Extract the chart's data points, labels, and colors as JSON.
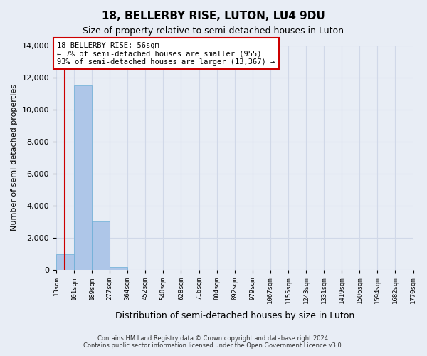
{
  "title": "18, BELLERBY RISE, LUTON, LU4 9DU",
  "subtitle": "Size of property relative to semi-detached houses in Luton",
  "xlabel": "Distribution of semi-detached houses by size in Luton",
  "ylabel": "Number of semi-detached properties",
  "footer_line1": "Contains HM Land Registry data © Crown copyright and database right 2024.",
  "footer_line2": "Contains public sector information licensed under the Open Government Licence v3.0.",
  "property_size": 56,
  "property_label": "18 BELLERBY RISE: 56sqm",
  "smaller_pct": 7,
  "smaller_count": 955,
  "larger_pct": 93,
  "larger_count": 13367,
  "bin_edges": [
    13,
    101,
    189,
    277,
    364,
    452,
    540,
    628,
    716,
    804,
    892,
    979,
    1067,
    1155,
    1243,
    1331,
    1419,
    1506,
    1594,
    1682,
    1770
  ],
  "bin_labels": [
    "13sqm",
    "101sqm",
    "189sqm",
    "277sqm",
    "364sqm",
    "452sqm",
    "540sqm",
    "628sqm",
    "716sqm",
    "804sqm",
    "892sqm",
    "979sqm",
    "1067sqm",
    "1155sqm",
    "1243sqm",
    "1331sqm",
    "1419sqm",
    "1506sqm",
    "1594sqm",
    "1682sqm",
    "1770sqm"
  ],
  "bar_values": [
    955,
    11500,
    3000,
    150,
    0,
    0,
    0,
    0,
    0,
    0,
    0,
    0,
    0,
    0,
    0,
    0,
    0,
    0,
    0,
    0
  ],
  "bar_color": "#aec6e8",
  "bar_edge_color": "#6aaed6",
  "annotation_box_color": "#ffffff",
  "annotation_box_edge": "#cc0000",
  "red_line_color": "#cc0000",
  "grid_color": "#d0d8e8",
  "background_color": "#e8edf5",
  "ylim": [
    0,
    14000
  ],
  "yticks": [
    0,
    2000,
    4000,
    6000,
    8000,
    10000,
    12000,
    14000
  ]
}
